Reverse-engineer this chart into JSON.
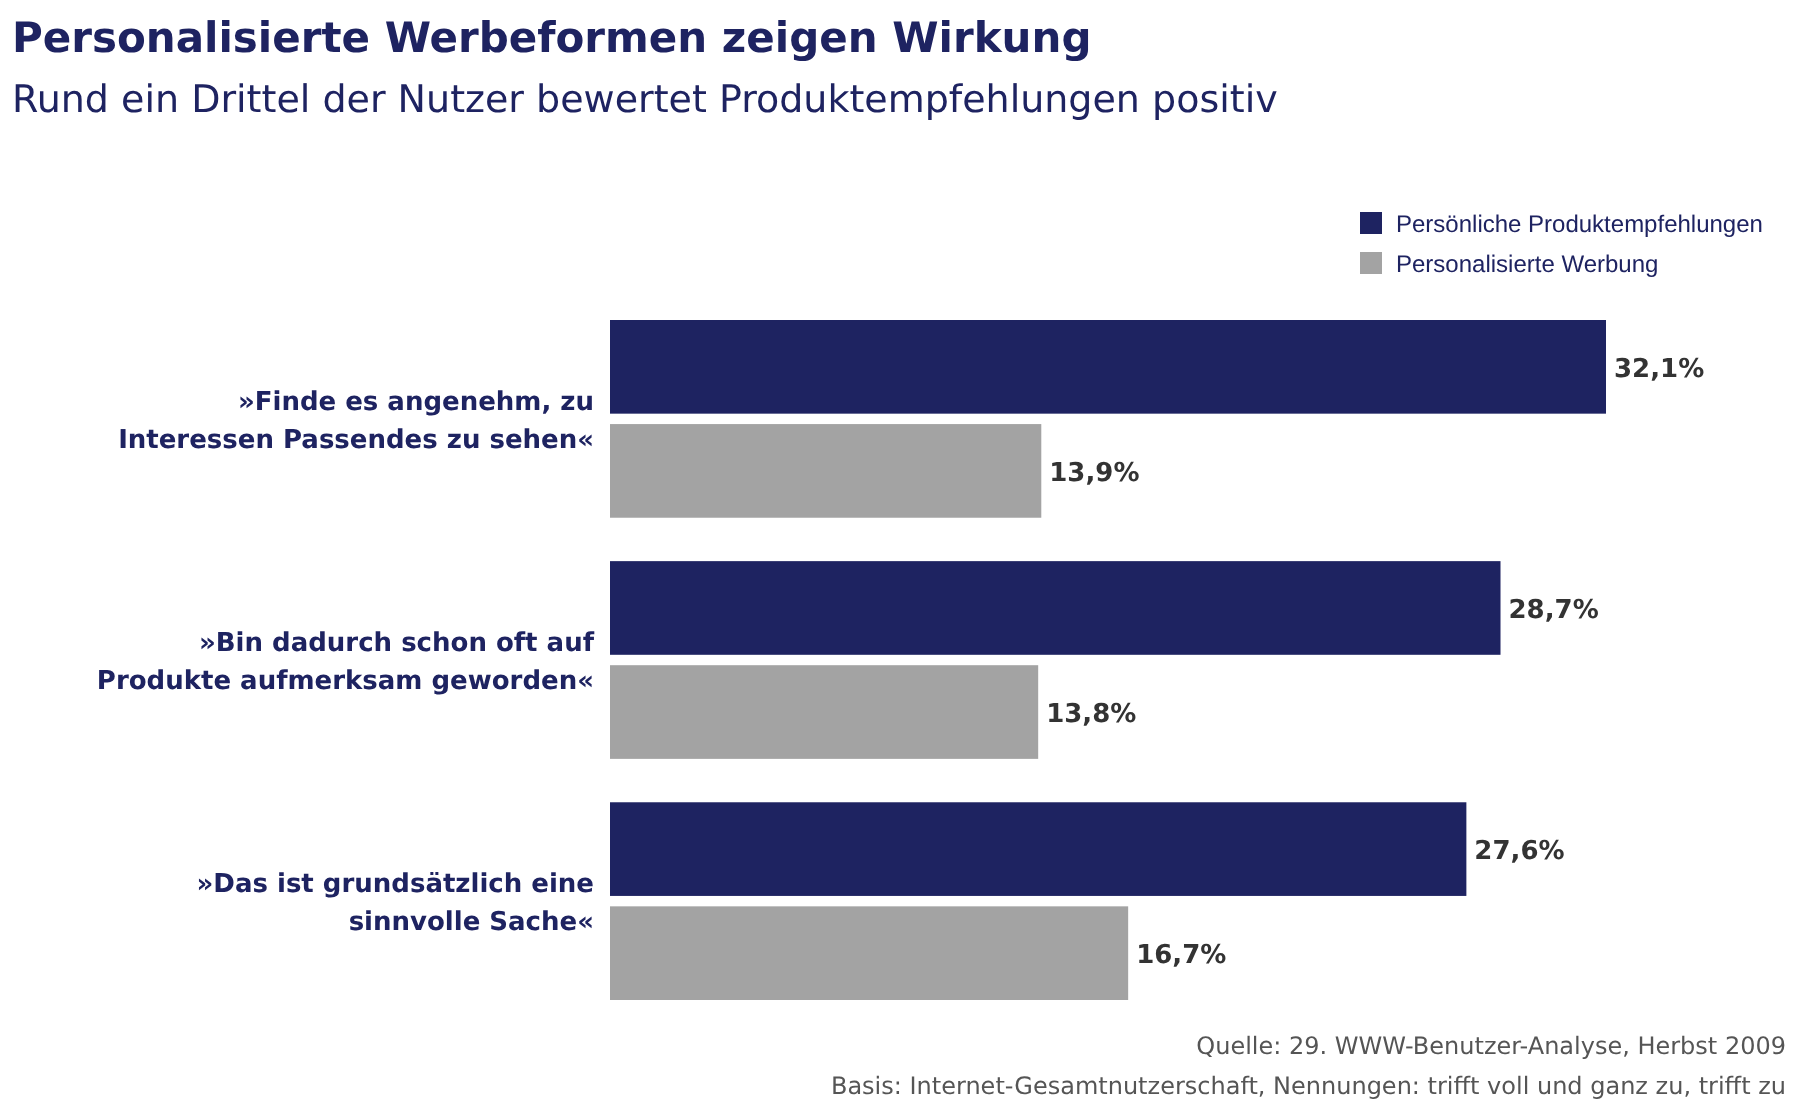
{
  "chart_data": {
    "type": "bar",
    "orientation": "horizontal",
    "title": "Personalisierte Werbeformen zeigen Wirkung",
    "subtitle": "Rund ein Drittel der Nutzer bewertet Produktempfehlungen positiv",
    "categories": [
      "»Finde es angenehm, zu\nInteressen Passendes zu sehen«",
      "»Bin dadurch schon oft auf\nProdukte aufmerksam geworden«",
      "»Das ist grundsätzlich eine\nsinnvolle Sache«"
    ],
    "series": [
      {
        "name": "Persönliche Produktempfehlungen",
        "color": "#1e2361",
        "values": [
          32.1,
          28.7,
          27.6
        ],
        "value_labels": [
          "32,1%",
          "28,7%",
          "27,6%"
        ]
      },
      {
        "name": "Personalisierte Werbung",
        "color": "#a3a3a3",
        "values": [
          13.9,
          13.8,
          16.7
        ],
        "value_labels": [
          "13,9%",
          "13,8%",
          "16,7%"
        ]
      }
    ],
    "legend": "top right",
    "annotations": [
      "Quelle: 29. WWW-Benutzer-Analyse, Herbst 2009",
      "Basis: Internet-Gesamtnutzerschaft, Nennungen: trifft voll und ganz zu, trifft zu"
    ]
  }
}
